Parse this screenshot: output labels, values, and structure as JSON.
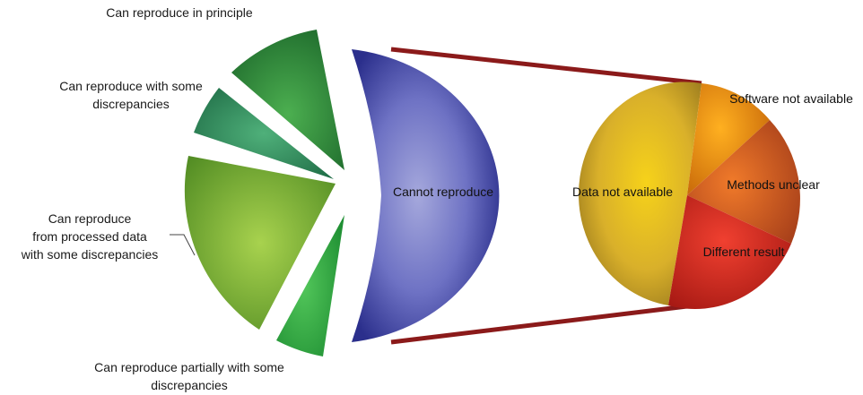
{
  "chart_data": [
    {
      "type": "pie",
      "title": "",
      "slices": [
        {
          "label": "Cannot reproduce",
          "value": 50,
          "color": "#3a3f9e"
        },
        {
          "label": "Can reproduce partially with some discrepancies",
          "value": 6,
          "color": "#3aa84a"
        },
        {
          "label": "Can reproduce from processed data with some discrepancies",
          "value": 22,
          "color": "#7bb53a"
        },
        {
          "label": "Can reproduce with some discrepancies",
          "value": 6,
          "color": "#2f8a5a"
        },
        {
          "label": "Can reproduce in principle",
          "value": 11,
          "color": "#2f8a3e"
        }
      ],
      "exploded": true
    },
    {
      "type": "pie",
      "title": "",
      "breakdown_of": "Cannot reproduce",
      "slices": [
        {
          "label": "Data not available",
          "value": 55,
          "color": "#d9b02a"
        },
        {
          "label": "Software not available",
          "value": 10,
          "color": "#e8900f"
        },
        {
          "label": "Methods unclear",
          "value": 15,
          "color": "#d25a1c"
        },
        {
          "label": "Different result",
          "value": 20,
          "color": "#d22a20"
        }
      ]
    }
  ],
  "labels": {
    "in_principle": "Can reproduce in principle",
    "some_discrepancies_1": "Can reproduce with some",
    "some_discrepancies_2": "discrepancies",
    "processed_1": "Can reproduce",
    "processed_2": "from processed data",
    "processed_3": "with some discrepancies",
    "partially_1": "Can reproduce partially with some",
    "partially_2": "discrepancies",
    "cannot": "Cannot reproduce",
    "data_na": "Data not available",
    "software_na": "Software not available",
    "methods": "Methods unclear",
    "different": "Different result"
  },
  "colors": {
    "connector": "#8b1a1a"
  }
}
